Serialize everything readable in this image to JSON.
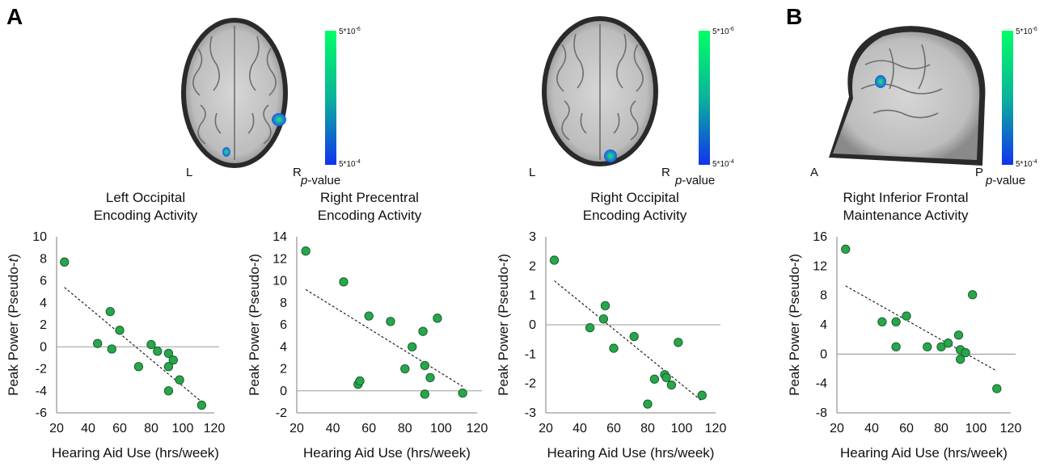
{
  "panel_labels": [
    "A",
    "B"
  ],
  "colors": {
    "dot": "#2aa54a",
    "dot_edge": "#0f5a2c",
    "colorbar_top": "#00ff66",
    "colorbar_mid": "#0bb39a",
    "colorbar_bottom": "#1133ee",
    "blob": "#1c6bea"
  },
  "brains": [
    {
      "id": "axial-1",
      "orient_left": "L",
      "orient_right": "R",
      "cb_top": "5*10",
      "cb_top_exp": "-6",
      "cb_bottom": "5*10",
      "cb_bottom_exp": "-4",
      "pvalue_prefix": "p",
      "pvalue_suffix": "-value"
    },
    {
      "id": "axial-2",
      "orient_left": "L",
      "orient_right": "R",
      "cb_top": "5*10",
      "cb_top_exp": "-6",
      "cb_bottom": "5*10",
      "cb_bottom_exp": "-4",
      "pvalue_prefix": "p",
      "pvalue_suffix": "-value"
    },
    {
      "id": "sagittal",
      "orient_left": "A",
      "orient_right": "P",
      "cb_top": "5*10",
      "cb_top_exp": "-6",
      "cb_bottom": "5*10",
      "cb_bottom_exp": "-4",
      "pvalue_prefix": "p",
      "pvalue_suffix": "-value"
    }
  ],
  "chart_data": [
    {
      "type": "scatter",
      "title": [
        "Left Occipital",
        "Encoding Activity"
      ],
      "xlabel": "Hearing Aid Use (hrs/week)",
      "ylabel": "Peak Power (Pseudo-",
      "ylabel_italic": "t",
      "ylabel_close": ")",
      "xlim": [
        20,
        120
      ],
      "ylim": [
        -6,
        10
      ],
      "xticks": [
        20,
        40,
        60,
        80,
        100,
        120
      ],
      "yticks": [
        -6,
        -4,
        -2,
        0,
        2,
        4,
        6,
        8,
        10
      ],
      "points": [
        {
          "x": 25,
          "y": 7.7
        },
        {
          "x": 46,
          "y": 0.3
        },
        {
          "x": 54,
          "y": 3.2
        },
        {
          "x": 55,
          "y": -0.2
        },
        {
          "x": 60,
          "y": 1.5
        },
        {
          "x": 72,
          "y": -1.8
        },
        {
          "x": 80,
          "y": 0.2
        },
        {
          "x": 84,
          "y": -0.4
        },
        {
          "x": 91,
          "y": -0.6
        },
        {
          "x": 91,
          "y": -1.8
        },
        {
          "x": 91,
          "y": -4.0
        },
        {
          "x": 94,
          "y": -1.2
        },
        {
          "x": 98,
          "y": -3.0
        },
        {
          "x": 112,
          "y": -5.3
        }
      ],
      "fit": [
        [
          25,
          5.4
        ],
        [
          112,
          -5.0
        ]
      ]
    },
    {
      "type": "scatter",
      "title": [
        "Right Precentral",
        "Encoding Activity"
      ],
      "xlabel": "Hearing Aid Use (hrs/week)",
      "ylabel": "Peak Power (Pseudo-",
      "ylabel_italic": "t",
      "ylabel_close": ")",
      "xlim": [
        20,
        120
      ],
      "ylim": [
        -2,
        14
      ],
      "xticks": [
        20,
        40,
        60,
        80,
        100,
        120
      ],
      "yticks": [
        -2,
        0,
        2,
        4,
        6,
        8,
        10,
        12,
        14
      ],
      "points": [
        {
          "x": 25,
          "y": 12.7
        },
        {
          "x": 46,
          "y": 9.9
        },
        {
          "x": 54,
          "y": 0.6
        },
        {
          "x": 55,
          "y": 0.9
        },
        {
          "x": 60,
          "y": 6.8
        },
        {
          "x": 72,
          "y": 6.3
        },
        {
          "x": 80,
          "y": 2.0
        },
        {
          "x": 84,
          "y": 4.0
        },
        {
          "x": 90,
          "y": 5.4
        },
        {
          "x": 91,
          "y": 2.3
        },
        {
          "x": 91,
          "y": -0.3
        },
        {
          "x": 94,
          "y": 1.2
        },
        {
          "x": 98,
          "y": 6.6
        },
        {
          "x": 112,
          "y": -0.2
        }
      ],
      "fit": [
        [
          25,
          9.2
        ],
        [
          112,
          0.4
        ]
      ]
    },
    {
      "type": "scatter",
      "title": [
        "Right Occipital",
        "Encoding Activity"
      ],
      "xlabel": "Hearing Aid Use (hrs/week)",
      "ylabel": "Peak Power (Pseudo-",
      "ylabel_italic": "t",
      "ylabel_close": ")",
      "xlim": [
        20,
        120
      ],
      "ylim": [
        -3,
        3
      ],
      "xticks": [
        20,
        40,
        60,
        80,
        100,
        120
      ],
      "yticks": [
        -3,
        -2,
        -1,
        0,
        1,
        2,
        3
      ],
      "points": [
        {
          "x": 25,
          "y": 2.2
        },
        {
          "x": 46,
          "y": -0.1
        },
        {
          "x": 54,
          "y": 0.2
        },
        {
          "x": 55,
          "y": 0.65
        },
        {
          "x": 60,
          "y": -0.8
        },
        {
          "x": 72,
          "y": -0.4
        },
        {
          "x": 80,
          "y": -2.7
        },
        {
          "x": 84,
          "y": -1.85
        },
        {
          "x": 90,
          "y": -1.7
        },
        {
          "x": 91,
          "y": -1.8
        },
        {
          "x": 94,
          "y": -2.05
        },
        {
          "x": 98,
          "y": -0.6
        },
        {
          "x": 112,
          "y": -2.4
        }
      ],
      "fit": [
        [
          25,
          1.5
        ],
        [
          112,
          -2.6
        ]
      ]
    },
    {
      "type": "scatter",
      "title": [
        "Right Inferior Frontal",
        "Maintenance Activity"
      ],
      "xlabel": "Hearing Aid Use (hrs/week)",
      "ylabel": "Peak Power (Pseudo-",
      "ylabel_italic": "t",
      "ylabel_close": ")",
      "xlim": [
        20,
        120
      ],
      "ylim": [
        -8,
        16
      ],
      "xticks": [
        20,
        40,
        60,
        80,
        100,
        120
      ],
      "yticks": [
        -8,
        -4,
        0,
        4,
        8,
        12,
        16
      ],
      "points": [
        {
          "x": 25,
          "y": 14.3
        },
        {
          "x": 46,
          "y": 4.4
        },
        {
          "x": 54,
          "y": 4.4
        },
        {
          "x": 54,
          "y": 1.0
        },
        {
          "x": 60,
          "y": 5.2
        },
        {
          "x": 72,
          "y": 1.0
        },
        {
          "x": 80,
          "y": 1.0
        },
        {
          "x": 84,
          "y": 1.5
        },
        {
          "x": 90,
          "y": 2.6
        },
        {
          "x": 91,
          "y": -0.7
        },
        {
          "x": 91,
          "y": 0.6
        },
        {
          "x": 94,
          "y": 0.2
        },
        {
          "x": 98,
          "y": 8.1
        },
        {
          "x": 112,
          "y": -4.7
        }
      ],
      "fit": [
        [
          25,
          9.3
        ],
        [
          112,
          -2.3
        ]
      ]
    }
  ]
}
